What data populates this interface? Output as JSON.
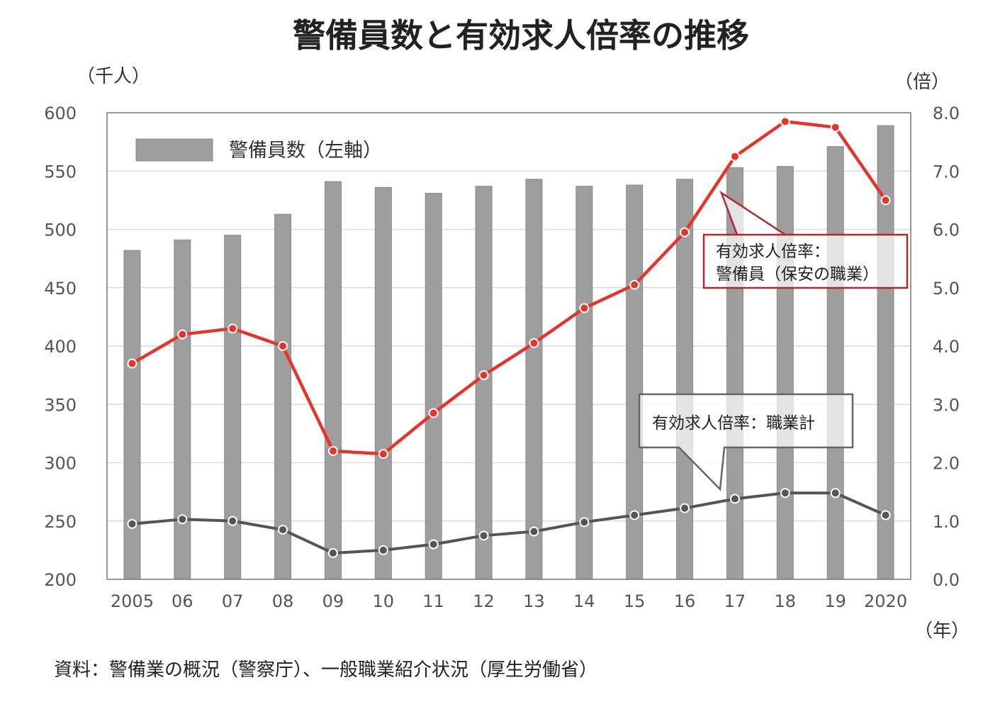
{
  "chart_data": {
    "type": "bar",
    "title": "警備員数と有効求人倍率の推移",
    "left_axis_unit": "（千人）",
    "right_axis_unit": "（倍）",
    "x_axis_unit": "（年）",
    "categories": [
      "2005",
      "06",
      "07",
      "08",
      "09",
      "10",
      "11",
      "12",
      "13",
      "14",
      "15",
      "16",
      "17",
      "18",
      "19",
      "2020"
    ],
    "y_left": {
      "min": 200,
      "max": 600,
      "ticks": [
        "600",
        "550",
        "500",
        "450",
        "400",
        "350",
        "300",
        "250",
        "200"
      ]
    },
    "y_right": {
      "min": 0,
      "max": 8,
      "ticks": [
        "8.0",
        "7.0",
        "6.0",
        "5.0",
        "4.0",
        "3.0",
        "2.0",
        "1.0",
        "0.0"
      ]
    },
    "grid": true,
    "legend_position": "top-left",
    "series": [
      {
        "name": "警備員数（左軸）",
        "type": "bar",
        "axis": "left",
        "color": "#9e9e9e",
        "values": [
          482,
          491,
          495,
          513,
          541,
          536,
          531,
          537,
          543,
          537,
          538,
          543,
          553,
          554,
          571,
          589
        ]
      },
      {
        "type": "line",
        "axis": "right",
        "color": "#e8332b",
        "values": [
          3.7,
          4.2,
          4.3,
          4.0,
          2.2,
          2.15,
          2.85,
          3.5,
          4.05,
          4.65,
          5.05,
          5.95,
          7.25,
          7.85,
          7.75,
          6.5
        ]
      },
      {
        "type": "line",
        "axis": "right",
        "color": "#555555",
        "values": [
          0.95,
          1.03,
          1.0,
          0.85,
          0.45,
          0.5,
          0.6,
          0.75,
          0.82,
          0.98,
          1.1,
          1.22,
          1.38,
          1.48,
          1.48,
          1.1
        ]
      }
    ],
    "annotations": {
      "security_ratio": [
        "有効求人倍率：",
        "警備員（保安の職業）"
      ],
      "overall_ratio": "有効求人倍率：職業計"
    },
    "source": "資料：警備業の概況（警察庁）、一般職業紹介状況（厚生労働省）"
  }
}
